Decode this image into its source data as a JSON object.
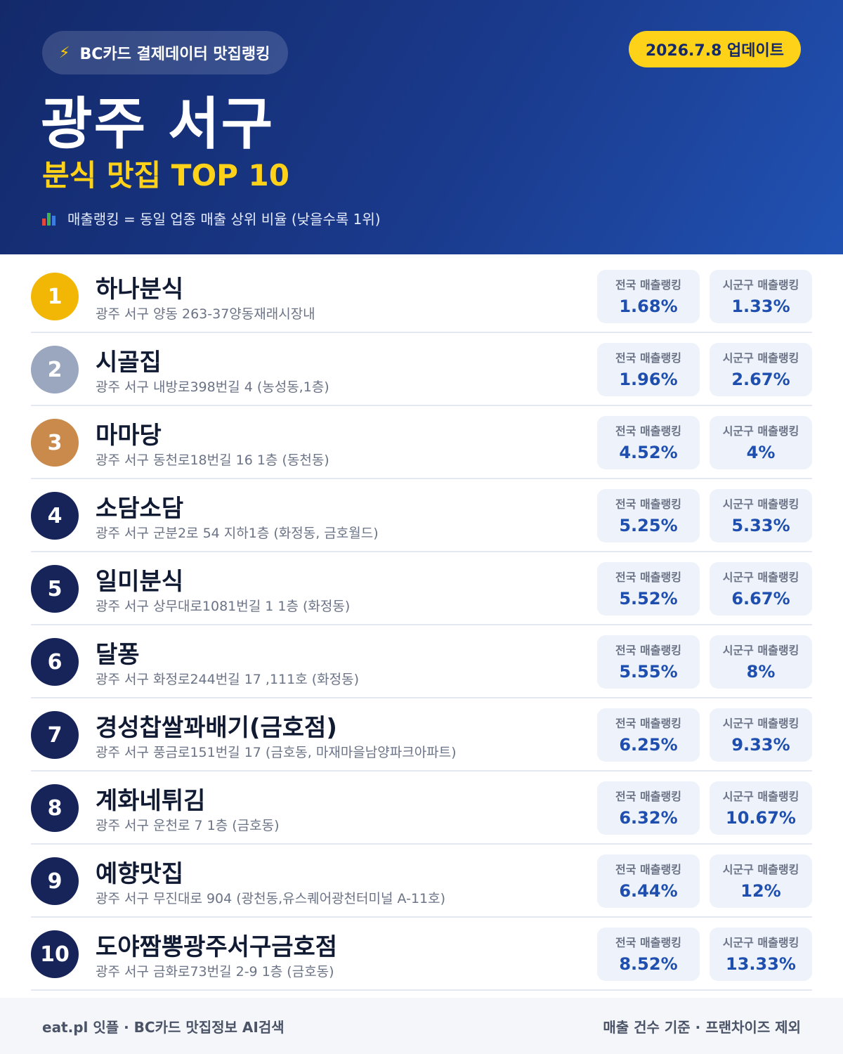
{
  "header": {
    "source_label": "BC카드 결제데이터 맛집랭킹",
    "update_label": "2026.7.8 업데이트",
    "region": "광주 서구",
    "category_title": "분식 맛집 TOP 10",
    "legend_text": "매출랭킹 = 동일 업종 매출 상위 비율 (낮을수록 1위)"
  },
  "labels": {
    "national": "전국 매출랭킹",
    "local": "시군구 매출랭킹"
  },
  "colors": {
    "gold": "#f2b705",
    "silver": "#9aa7bf",
    "bronze": "#c98a4b",
    "navy": "#16245a",
    "accent_yellow": "#ffd21a",
    "value_blue": "#1f4fae"
  },
  "restaurants": [
    {
      "rank": "1",
      "name": "하나분식",
      "address": "광주 서구 양동 263-37양동재래시장내",
      "national": "1.68%",
      "local": "1.33%"
    },
    {
      "rank": "2",
      "name": "시골집",
      "address": "광주 서구 내방로398번길 4 (농성동,1층)",
      "national": "1.96%",
      "local": "2.67%"
    },
    {
      "rank": "3",
      "name": "마마당",
      "address": "광주 서구 동천로18번길 16 1층 (동천동)",
      "national": "4.52%",
      "local": "4%"
    },
    {
      "rank": "4",
      "name": "소담소담",
      "address": "광주 서구 군분2로 54 지하1층 (화정동, 금호월드)",
      "national": "5.25%",
      "local": "5.33%"
    },
    {
      "rank": "5",
      "name": "일미분식",
      "address": "광주 서구 상무대로1081번길 1 1층 (화정동)",
      "national": "5.52%",
      "local": "6.67%"
    },
    {
      "rank": "6",
      "name": "달퐁",
      "address": "광주 서구 화정로244번길 17 ,111호 (화정동)",
      "national": "5.55%",
      "local": "8%"
    },
    {
      "rank": "7",
      "name": "경성찹쌀꽈배기(금호점)",
      "address": "광주 서구 풍금로151번길 17 (금호동, 마재마을남양파크아파트)",
      "national": "6.25%",
      "local": "9.33%"
    },
    {
      "rank": "8",
      "name": "계화네튀김",
      "address": "광주 서구 운천로 7 1층 (금호동)",
      "national": "6.32%",
      "local": "10.67%"
    },
    {
      "rank": "9",
      "name": "예향맛집",
      "address": "광주 서구 무진대로 904 (광천동,유스퀘어광천터미널 A-11호)",
      "national": "6.44%",
      "local": "12%"
    },
    {
      "rank": "10",
      "name": "도야짬뽕광주서구금호점",
      "address": "광주 서구 금화로73번길 2-9 1층 (금호동)",
      "national": "8.52%",
      "local": "13.33%"
    }
  ],
  "footer": {
    "left": "eat.pl 잇플 · BC카드 맛집정보 AI검색",
    "right": "매출 건수 기준 · 프랜차이즈 제외"
  }
}
